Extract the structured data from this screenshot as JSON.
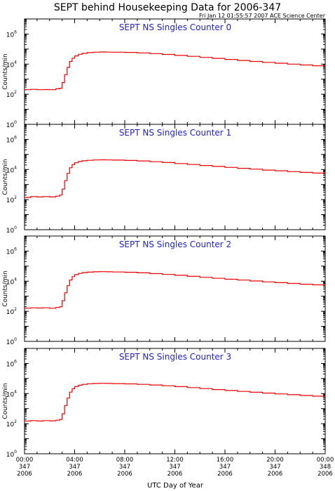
{
  "header": {
    "title": "SEPT behind Housekeeping Data for 2006-347",
    "timestamp": "Fri Jan 12 01:55:57 2007 ACE Science Center"
  },
  "colors": {
    "trace": "#ee0000",
    "panel_title": "#2222cc",
    "axis": "#000000"
  },
  "chart_data": [
    {
      "type": "line",
      "title": "SEPT NS Singles Counter 0",
      "ylabel": "Counts/min",
      "yscale": "log",
      "ylim": [
        1,
        10000000
      ],
      "ytick_labels": [
        "10^0",
        "10^2",
        "10^4",
        "10^6"
      ],
      "xlabel": "UTC Day of Year",
      "x_units": "hours since 2006-347 00:00",
      "xlim": [
        0,
        24
      ],
      "series": [
        {
          "x": [
            0,
            0.5,
            1,
            1.5,
            2,
            2.5,
            2.8,
            3.0,
            3.2,
            3.4,
            3.6,
            3.8,
            4.0,
            4.3,
            4.6,
            5.0,
            5.5,
            6.0,
            6.5,
            7.0,
            8,
            9,
            10,
            11,
            12,
            13,
            14,
            15,
            16,
            17,
            18,
            19,
            20,
            21,
            22,
            23,
            24
          ],
          "y": [
            200,
            210,
            200,
            205,
            200,
            230,
            250,
            600,
            2000,
            6000,
            15000,
            25000,
            35000,
            45000,
            52000,
            58000,
            62000,
            64000,
            63000,
            62000,
            60000,
            56000,
            50000,
            44000,
            38000,
            33000,
            28000,
            24000,
            20500,
            17500,
            15000,
            13000,
            11500,
            10000,
            8800,
            7800,
            7000
          ]
        }
      ]
    },
    {
      "type": "line",
      "title": "SEPT NS Singles Counter 1",
      "ylabel": "Counts/min",
      "yscale": "log",
      "ylim": [
        1,
        10000000
      ],
      "ytick_labels": [
        "10^0",
        "10^2",
        "10^4",
        "10^6"
      ],
      "xlabel": "UTC Day of Year",
      "x_units": "hours since 2006-347 00:00",
      "xlim": [
        0,
        24
      ],
      "series": [
        {
          "x": [
            0,
            0.5,
            1,
            1.5,
            2,
            2.5,
            2.8,
            3.0,
            3.2,
            3.4,
            3.6,
            3.8,
            4.0,
            4.3,
            4.6,
            5.0,
            5.5,
            6.0,
            6.5,
            7.0,
            8,
            9,
            10,
            11,
            12,
            13,
            14,
            15,
            16,
            17,
            18,
            19,
            20,
            21,
            22,
            23,
            24
          ],
          "y": [
            140,
            160,
            150,
            160,
            150,
            170,
            200,
            500,
            1800,
            5500,
            13000,
            21000,
            28000,
            34000,
            38000,
            41000,
            43000,
            44000,
            43000,
            42000,
            40000,
            37000,
            33000,
            29000,
            25000,
            21500,
            18500,
            16000,
            13800,
            12000,
            10500,
            9200,
            8200,
            7200,
            6400,
            5800,
            5200
          ]
        }
      ]
    },
    {
      "type": "line",
      "title": "SEPT NS Singles Counter 2",
      "ylabel": "Counts/min",
      "yscale": "log",
      "ylim": [
        1,
        10000000
      ],
      "ytick_labels": [
        "10^0",
        "10^2",
        "10^4",
        "10^6"
      ],
      "xlabel": "UTC Day of Year",
      "x_units": "hours since 2006-347 00:00",
      "xlim": [
        0,
        24
      ],
      "series": [
        {
          "x": [
            0,
            0.5,
            1,
            1.5,
            2,
            2.5,
            2.8,
            3.0,
            3.2,
            3.4,
            3.6,
            3.8,
            4.0,
            4.3,
            4.6,
            5.0,
            5.5,
            6.0,
            6.5,
            7.0,
            8,
            9,
            10,
            11,
            12,
            13,
            14,
            15,
            16,
            17,
            18,
            19,
            20,
            21,
            22,
            23,
            24
          ],
          "y": [
            160,
            170,
            165,
            170,
            160,
            180,
            200,
            500,
            1700,
            5000,
            12000,
            20000,
            27000,
            33000,
            37000,
            40000,
            42000,
            43000,
            42000,
            41000,
            39000,
            36000,
            32000,
            28000,
            24500,
            21000,
            18000,
            15500,
            13500,
            11800,
            10300,
            9000,
            8000,
            7100,
            6300,
            5700,
            5100
          ]
        }
      ]
    },
    {
      "type": "line",
      "title": "SEPT NS Singles Counter 3",
      "ylabel": "Counts/min",
      "yscale": "log",
      "ylim": [
        1,
        10000000
      ],
      "ytick_labels": [
        "10^0",
        "10^2",
        "10^4",
        "10^6"
      ],
      "xlabel": "UTC Day of Year",
      "x_units": "hours since 2006-347 00:00",
      "xlim": [
        0,
        24
      ],
      "series": [
        {
          "x": [
            0,
            0.5,
            1,
            1.5,
            2,
            2.5,
            2.8,
            3.0,
            3.2,
            3.4,
            3.6,
            3.8,
            4.0,
            4.3,
            4.6,
            5.0,
            5.5,
            6.0,
            6.5,
            7.0,
            8,
            9,
            10,
            11,
            12,
            13,
            14,
            15,
            16,
            17,
            18,
            19,
            20,
            21,
            22,
            23,
            24
          ],
          "y": [
            150,
            160,
            150,
            160,
            155,
            170,
            190,
            450,
            1600,
            5000,
            12500,
            21000,
            29000,
            36000,
            41000,
            45000,
            47000,
            48000,
            47000,
            46000,
            44000,
            41000,
            37000,
            33000,
            29000,
            25000,
            21500,
            18500,
            16000,
            14000,
            12200,
            10800,
            9500,
            8400,
            7500,
            6700,
            6000
          ]
        }
      ]
    }
  ],
  "x_axis": {
    "label": "UTC Day of Year",
    "ticks": [
      {
        "hour": 0,
        "time": "00:00",
        "day": "347",
        "year": "2006"
      },
      {
        "hour": 4,
        "time": "04:00",
        "day": "347",
        "year": "2006"
      },
      {
        "hour": 8,
        "time": "08:00",
        "day": "347",
        "year": "2006"
      },
      {
        "hour": 12,
        "time": "12:00",
        "day": "347",
        "year": "2006"
      },
      {
        "hour": 16,
        "time": "16:00",
        "day": "347",
        "year": "2006"
      },
      {
        "hour": 20,
        "time": "20:00",
        "day": "347",
        "year": "2006"
      },
      {
        "hour": 24,
        "time": "00:00",
        "day": "348",
        "year": "2006"
      }
    ]
  }
}
